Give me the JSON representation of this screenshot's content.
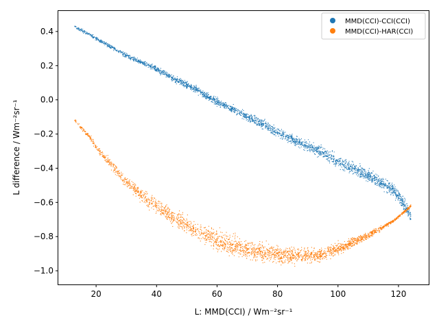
{
  "chart_data": {
    "type": "scatter",
    "title": "",
    "xlabel": "L: MMD(CCI) / Wm⁻²sr⁻¹",
    "ylabel": "L difference / Wm⁻²sr⁻¹",
    "xlim": [
      7.5,
      130
    ],
    "ylim": [
      -1.08,
      0.52
    ],
    "xticks": [
      20,
      40,
      60,
      80,
      100,
      120
    ],
    "yticks": [
      -1.0,
      -0.8,
      -0.6,
      -0.4,
      -0.2,
      0.0,
      0.2,
      0.4
    ],
    "xtick_labels": [
      "20",
      "40",
      "60",
      "80",
      "100",
      "120"
    ],
    "ytick_labels": [
      "−1.0",
      "−0.8",
      "−0.6",
      "−0.4",
      "−0.2",
      "0.0",
      "0.2",
      "0.4"
    ],
    "grid": false,
    "legend_position": "top-right",
    "series": [
      {
        "name": "MMD(CCI)-CCI(CCI)",
        "color": "#1f77b4",
        "x": [
          13,
          15,
          18,
          20,
          25,
          30,
          35,
          40,
          45,
          50,
          55,
          60,
          65,
          70,
          75,
          80,
          85,
          90,
          95,
          100,
          105,
          110,
          115,
          118,
          120,
          122,
          124
        ],
        "y": [
          0.43,
          0.41,
          0.38,
          0.36,
          0.31,
          0.26,
          0.22,
          0.18,
          0.13,
          0.09,
          0.04,
          -0.01,
          -0.05,
          -0.1,
          -0.14,
          -0.19,
          -0.23,
          -0.27,
          -0.31,
          -0.36,
          -0.4,
          -0.44,
          -0.49,
          -0.52,
          -0.56,
          -0.62,
          -0.68
        ]
      },
      {
        "name": "MMD(CCI)-HAR(CCI)",
        "color": "#ff7f0e",
        "x": [
          13,
          15,
          18,
          20,
          25,
          30,
          35,
          40,
          45,
          50,
          55,
          60,
          65,
          70,
          75,
          80,
          85,
          90,
          95,
          100,
          105,
          110,
          115,
          118,
          120,
          122,
          124
        ],
        "y": [
          -0.12,
          -0.16,
          -0.22,
          -0.28,
          -0.38,
          -0.48,
          -0.56,
          -0.62,
          -0.68,
          -0.73,
          -0.78,
          -0.82,
          -0.85,
          -0.87,
          -0.89,
          -0.9,
          -0.91,
          -0.91,
          -0.9,
          -0.87,
          -0.83,
          -0.79,
          -0.74,
          -0.71,
          -0.68,
          -0.65,
          -0.62
        ]
      }
    ]
  }
}
